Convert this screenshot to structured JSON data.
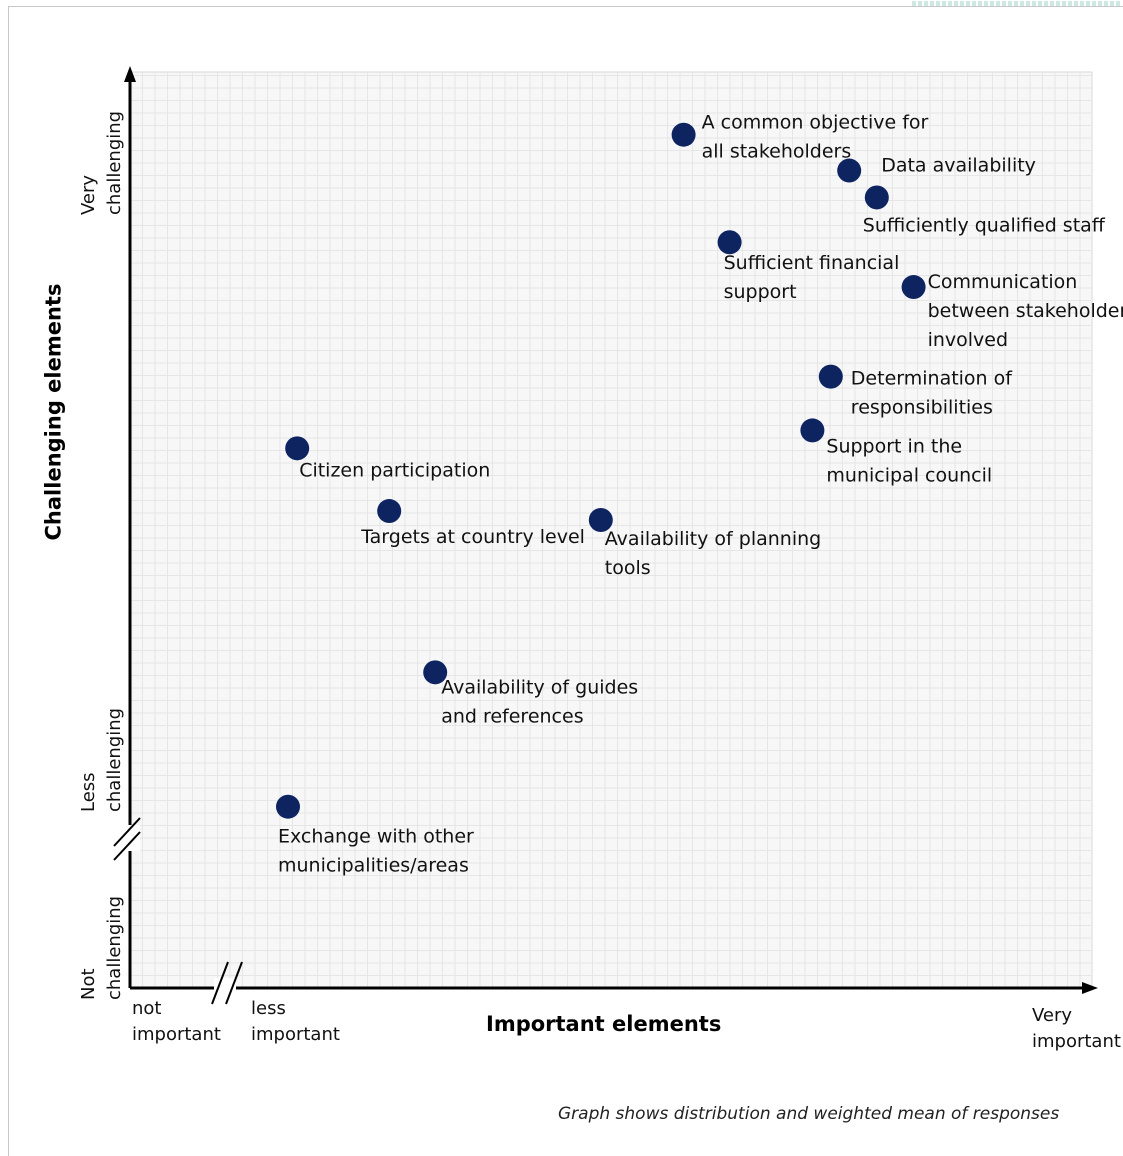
{
  "chart_data": {
    "type": "scatter",
    "title": "",
    "xlabel": "Important elements",
    "ylabel": "Challenging elements",
    "xlim": [
      0,
      10
    ],
    "ylim": [
      0,
      10
    ],
    "grid": true,
    "x_axis_labels": {
      "not": [
        "not",
        "important"
      ],
      "less": [
        "less",
        "important"
      ],
      "very": [
        "Very",
        "important"
      ]
    },
    "y_axis_labels": {
      "not": [
        "Not",
        "challenging"
      ],
      "less": [
        "Less",
        "challenging"
      ],
      "very": [
        "Very",
        "challenging"
      ]
    },
    "points": [
      {
        "label": [
          "A common objective for",
          "all stakeholders"
        ],
        "x": 5.8,
        "y": 9.3
      },
      {
        "label": [
          "Data availability"
        ],
        "x": 7.6,
        "y": 8.9
      },
      {
        "label": [
          "Sufficiently qualified staff"
        ],
        "x": 7.9,
        "y": 8.6
      },
      {
        "label": [
          "Sufficient financial",
          "support"
        ],
        "x": 6.3,
        "y": 8.1
      },
      {
        "label": [
          "Communication",
          "between stakeholders",
          "involved"
        ],
        "x": 8.3,
        "y": 7.6
      },
      {
        "label": [
          "Determination of",
          "responsibilities"
        ],
        "x": 7.4,
        "y": 6.6
      },
      {
        "label": [
          "Support in the",
          "municipal council"
        ],
        "x": 7.2,
        "y": 6.0
      },
      {
        "label": [
          "Citizen participation"
        ],
        "x": 1.6,
        "y": 5.8
      },
      {
        "label": [
          "Targets at country level"
        ],
        "x": 2.6,
        "y": 5.1
      },
      {
        "label": [
          "Availability of planning",
          "tools"
        ],
        "x": 4.9,
        "y": 5.0
      },
      {
        "label": [
          "Availability of guides",
          "and references"
        ],
        "x": 3.1,
        "y": 3.3
      },
      {
        "label": [
          "Exchange with other",
          "municipalities/areas"
        ],
        "x": 1.5,
        "y": 1.8
      }
    ],
    "note": "Graph shows distribution and weighted mean of responses"
  },
  "colors": {
    "point": "#0d2461",
    "grid": "#e6e6e6",
    "plot_bg": "#f7f7f7",
    "axis": "#000000",
    "corner_decoration": "#cde8e0"
  }
}
